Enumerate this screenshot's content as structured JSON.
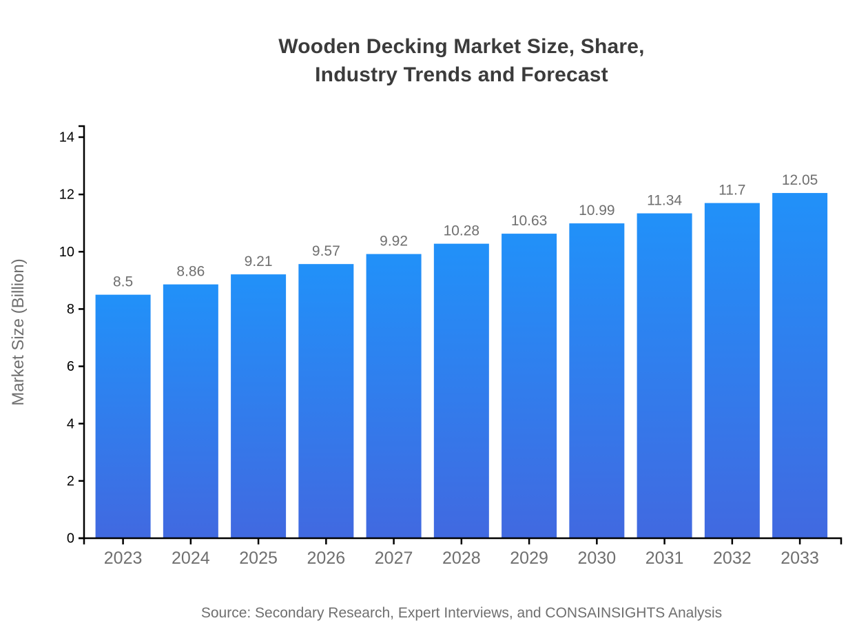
{
  "header": {
    "title_line1": "Wooden Decking Market Size, Share,",
    "title_line2": "Industry Trends and Forecast"
  },
  "footer": {
    "source_note": "Source: Secondary Research, Expert Interviews, and CONSAINSIGHTS Analysis"
  },
  "colors": {
    "background": "#ffffff",
    "bar_gradient_top": "#2191F9",
    "bar_gradient_bottom": "#4169E0",
    "axis": "#000000",
    "y_tick_label": "#000000",
    "category_label": "#6f6f6f",
    "value_label": "#6f6f6f",
    "title": "#3b3b3b",
    "source": "#6f6f6f",
    "axis_title": "#6f6f6f"
  },
  "chart_data": {
    "type": "bar",
    "title": "Wooden Decking Market Size, Share, Industry Trends and Forecast",
    "categories": [
      "2023",
      "2024",
      "2025",
      "2026",
      "2027",
      "2028",
      "2029",
      "2030",
      "2031",
      "2032",
      "2033"
    ],
    "values": [
      8.5,
      8.86,
      9.21,
      9.57,
      9.92,
      10.28,
      10.63,
      10.99,
      11.34,
      11.7,
      12.05
    ],
    "xlabel": "",
    "ylabel": "Market Size (Billion)",
    "ylim": [
      0,
      14
    ],
    "yticks": [
      0,
      2,
      4,
      6,
      8,
      10,
      12,
      14
    ],
    "grid": false,
    "legend": false,
    "bar_gradient": [
      "#2191F9",
      "#4169E0"
    ],
    "source": "Source: Secondary Research, Expert Interviews, and CONSAINSIGHTS Analysis"
  }
}
